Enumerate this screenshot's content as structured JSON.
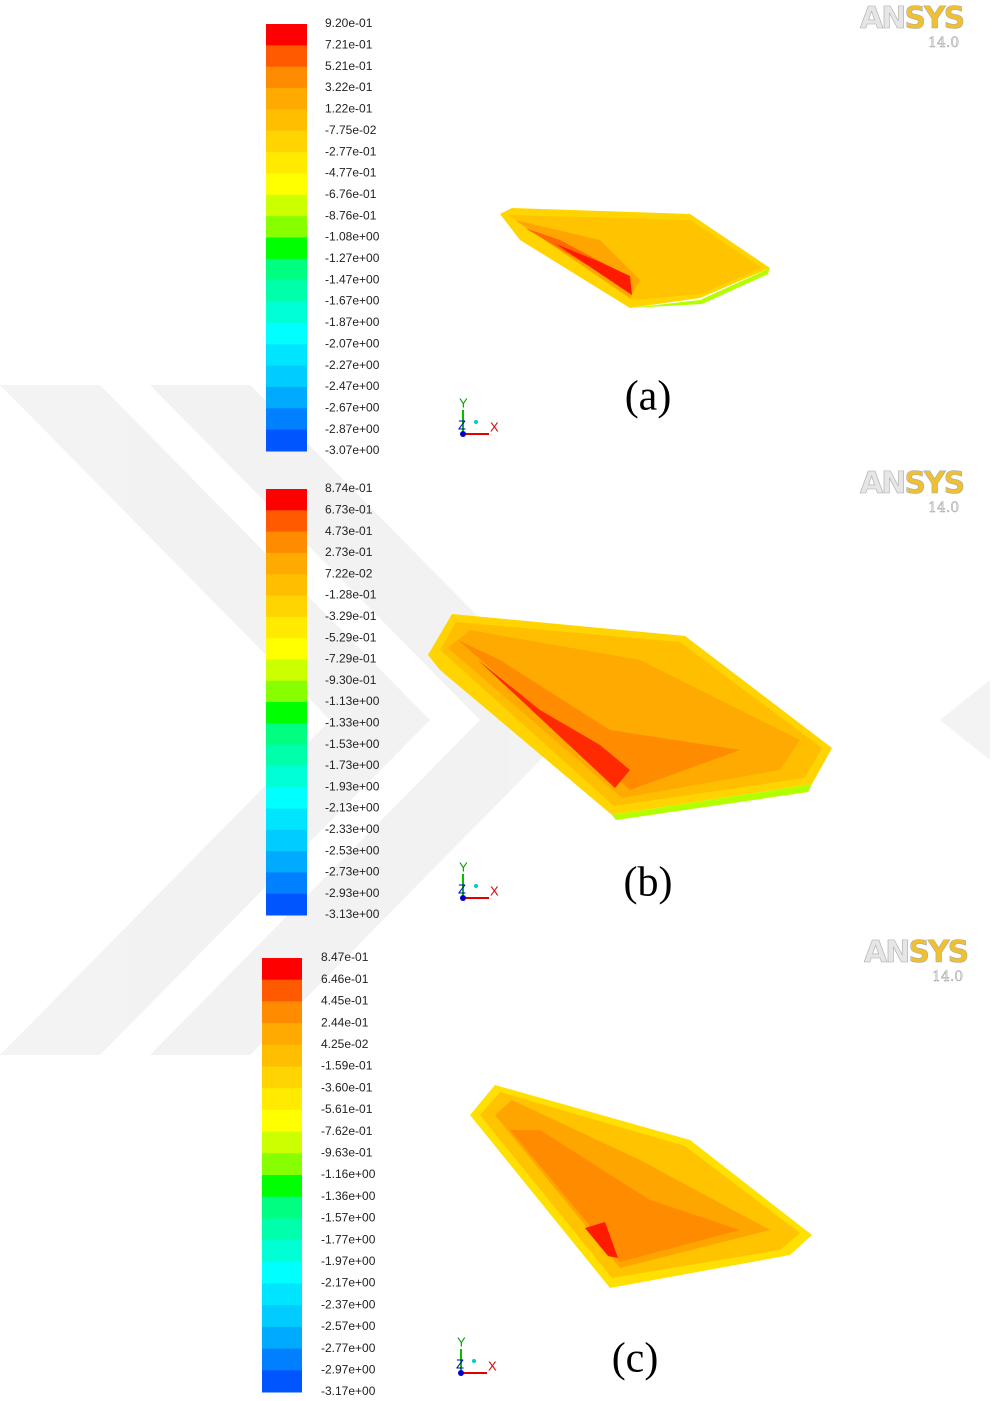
{
  "panels": [
    {
      "legend": [
        "9.20e-01",
        "7.21e-01",
        "5.21e-01",
        "3.22e-01",
        "1.22e-01",
        "-7.75e-02",
        "-2.77e-01",
        "-4.77e-01",
        "-6.76e-01",
        "-8.76e-01",
        "-1.08e+00",
        "-1.27e+00",
        "-1.47e+00",
        "-1.67e+00",
        "-1.87e+00",
        "-2.07e+00",
        "-2.27e+00",
        "-2.47e+00",
        "-2.67e+00",
        "-2.87e+00",
        "-3.07e+00"
      ],
      "logo": "ANSYS",
      "version": "14.0",
      "axes": {
        "y": "Y",
        "z": "Z",
        "x": "X"
      },
      "caption": "(a)"
    },
    {
      "legend": [
        "8.74e-01",
        "6.73e-01",
        "4.73e-01",
        "2.73e-01",
        "7.22e-02",
        "-1.28e-01",
        "-3.29e-01",
        "-5.29e-01",
        "-7.29e-01",
        "-9.30e-01",
        "-1.13e+00",
        "-1.33e+00",
        "-1.53e+00",
        "-1.73e+00",
        "-1.93e+00",
        "-2.13e+00",
        "-2.33e+00",
        "-2.53e+00",
        "-2.73e+00",
        "-2.93e+00",
        "-3.13e+00"
      ],
      "logo": "ANSYS",
      "version": "14.0",
      "axes": {
        "y": "Y",
        "z": "Z",
        "x": "X"
      },
      "caption": "(b)"
    },
    {
      "legend": [
        "8.47e-01",
        "6.46e-01",
        "4.45e-01",
        "2.44e-01",
        "4.25e-02",
        "-1.59e-01",
        "-3.60e-01",
        "-5.61e-01",
        "-7.62e-01",
        "-9.63e-01",
        "-1.16e+00",
        "-1.36e+00",
        "-1.57e+00",
        "-1.77e+00",
        "-1.97e+00",
        "-2.17e+00",
        "-2.37e+00",
        "-2.57e+00",
        "-2.77e+00",
        "-2.97e+00",
        "-3.17e+00"
      ],
      "logo": "ANSYS",
      "version": "14.0",
      "axes": {
        "y": "Y",
        "z": "Z",
        "x": "X"
      },
      "caption": "(c)"
    }
  ],
  "colormap": [
    "#ff0000",
    "#ff5a00",
    "#ff8c00",
    "#ffaa00",
    "#ffbf00",
    "#ffd400",
    "#ffea00",
    "#ffff00",
    "#ccff00",
    "#88ff00",
    "#00ff00",
    "#00ff80",
    "#00ffaa",
    "#00ffd4",
    "#00ffff",
    "#00e5ff",
    "#00ccff",
    "#00aaff",
    "#0080ff",
    "#0055ff"
  ]
}
